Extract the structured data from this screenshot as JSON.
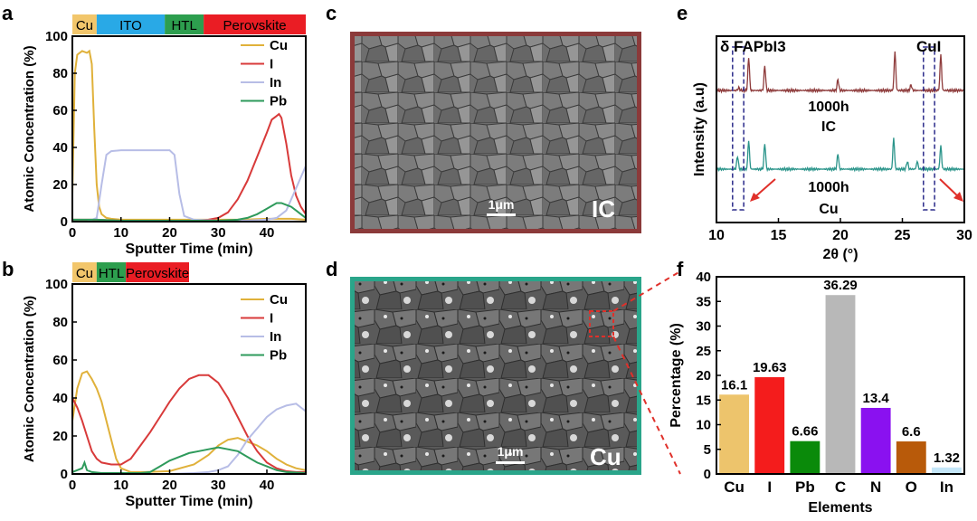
{
  "panel_labels": {
    "a": "a",
    "b": "b",
    "c": "c",
    "d": "d",
    "e": "e",
    "f": "f"
  },
  "colors": {
    "Cu": "#e0b13a",
    "I": "#d83a3a",
    "In": "#b7bde6",
    "Pb": "#2e9a5b",
    "bar_Cu": "#f2c66b",
    "ITO": "#29a9e6",
    "HTL": "#2d9e4e",
    "Perovskite": "#ea1d24",
    "ic_frame": "#8b3a3a",
    "cu_frame": "#2aa58a",
    "xrd_ic": "#8e3b3b",
    "xrd_cu": "#2a948a",
    "arrow": "#e0302a",
    "dash": "#2a2a8a"
  },
  "sem": {
    "c": {
      "scale_label": "1μm",
      "sample_label": "IC"
    },
    "d": {
      "scale_label": "1μm",
      "sample_label": "Cu"
    }
  },
  "chart_data": [
    {
      "id": "a",
      "type": "line",
      "xlabel": "Sputter Time (min)",
      "ylabel": "Atomic Concentration (%)",
      "xlim": [
        0,
        48
      ],
      "ylim": [
        0,
        100
      ],
      "xticks": [
        0,
        10,
        20,
        30,
        40
      ],
      "yticks": [
        0,
        20,
        40,
        60,
        80,
        100
      ],
      "layers": [
        {
          "label": "Cu",
          "x0": 0,
          "x1": 5,
          "color": "#f2c66b"
        },
        {
          "label": "ITO",
          "x0": 5,
          "x1": 19,
          "color": "#29a9e6"
        },
        {
          "label": "HTL",
          "x0": 19,
          "x1": 27,
          "color": "#2d9e4e"
        },
        {
          "label": "Perovskite",
          "x0": 27,
          "x1": 48,
          "color": "#ea1d24"
        }
      ],
      "series": [
        {
          "name": "Cu",
          "color": "#e0b13a",
          "x": [
            0,
            0.5,
            1,
            2,
            3,
            3.5,
            4,
            4.5,
            5,
            5.5,
            6,
            7,
            8,
            10,
            15,
            20,
            25,
            30,
            35,
            40,
            45,
            48
          ],
          "y": [
            15,
            80,
            90,
            92,
            91,
            92,
            85,
            50,
            20,
            8,
            4,
            2,
            1.5,
            1,
            1,
            1,
            1,
            1,
            1,
            1.5,
            1.5,
            1
          ]
        },
        {
          "name": "I",
          "color": "#d83a3a",
          "x": [
            0,
            5,
            10,
            20,
            25,
            28,
            30,
            32,
            34,
            36,
            38,
            40,
            41,
            42,
            42.5,
            43,
            44,
            45,
            46,
            47,
            48
          ],
          "y": [
            1,
            1,
            0.5,
            0.5,
            0.5,
            1,
            2,
            5,
            12,
            22,
            35,
            48,
            55,
            57,
            58,
            56,
            42,
            25,
            14,
            8,
            4
          ]
        },
        {
          "name": "In",
          "color": "#b7bde6",
          "x": [
            0,
            3,
            5,
            6,
            7,
            8,
            10,
            15,
            20,
            21,
            22,
            23,
            25,
            30,
            35,
            40,
            42,
            44,
            46,
            48
          ],
          "y": [
            0,
            0,
            2,
            20,
            36,
            38,
            38.5,
            38.5,
            38.5,
            36,
            15,
            3,
            1,
            0.5,
            0.5,
            1,
            2,
            6,
            18,
            30
          ]
        },
        {
          "name": "Pb",
          "color": "#2e9a5b",
          "x": [
            0,
            5,
            10,
            20,
            25,
            30,
            34,
            36,
            38,
            40,
            42,
            43,
            44,
            45,
            46,
            47,
            48
          ],
          "y": [
            1,
            1,
            0.5,
            0.5,
            0.5,
            0.5,
            1,
            2,
            4,
            7,
            10,
            10,
            9,
            8,
            6,
            4,
            2
          ]
        }
      ]
    },
    {
      "id": "b",
      "type": "line",
      "xlabel": "Sputter Time (min)",
      "ylabel": "Atomic Concentration (%)",
      "xlim": [
        0,
        48
      ],
      "ylim": [
        0,
        100
      ],
      "xticks": [
        0,
        10,
        20,
        30,
        40
      ],
      "yticks": [
        0,
        20,
        40,
        60,
        80,
        100
      ],
      "layers": [
        {
          "label": "Cu",
          "x0": 0,
          "x1": 5,
          "color": "#f2c66b"
        },
        {
          "label": "HTL",
          "x0": 5,
          "x1": 11,
          "color": "#2d9e4e"
        },
        {
          "label": "Perovskite",
          "x0": 11,
          "x1": 24,
          "color": "#ea1d24"
        }
      ],
      "series": [
        {
          "name": "Cu",
          "color": "#e0b13a",
          "x": [
            0,
            1,
            2,
            3,
            4,
            5,
            6,
            7,
            8,
            9,
            10,
            12,
            15,
            20,
            25,
            28,
            30,
            32,
            34,
            36,
            38,
            40,
            42,
            44,
            46,
            48
          ],
          "y": [
            28,
            45,
            53,
            54,
            50,
            45,
            38,
            28,
            18,
            8,
            3,
            1,
            1,
            1.5,
            5,
            10,
            15,
            18,
            19,
            17,
            15,
            12,
            8,
            5,
            3,
            2
          ]
        },
        {
          "name": "I",
          "color": "#d83a3a",
          "x": [
            0,
            1,
            2,
            3,
            4,
            5,
            6,
            8,
            10,
            12,
            14,
            16,
            18,
            20,
            22,
            24,
            26,
            28,
            30,
            32,
            34,
            36,
            38,
            40,
            42,
            44,
            46,
            48
          ],
          "y": [
            40,
            35,
            28,
            20,
            12,
            8,
            6,
            5,
            5,
            8,
            15,
            22,
            30,
            38,
            45,
            50,
            52,
            52,
            48,
            40,
            30,
            20,
            12,
            6,
            3,
            1.5,
            1,
            1
          ]
        },
        {
          "name": "In",
          "color": "#b7bde6",
          "x": [
            0,
            10,
            20,
            25,
            28,
            30,
            32,
            34,
            36,
            38,
            40,
            42,
            44,
            46,
            47,
            48
          ],
          "y": [
            0,
            0,
            0,
            0.5,
            1,
            2,
            4,
            10,
            18,
            24,
            30,
            34,
            36,
            37,
            35,
            33
          ]
        },
        {
          "name": "Pb",
          "color": "#2e9a5b",
          "x": [
            0,
            1,
            2,
            2.5,
            3,
            4,
            6,
            10,
            14,
            16,
            18,
            20,
            22,
            24,
            26,
            28,
            30,
            32,
            34,
            36,
            38,
            40,
            42,
            44,
            48
          ],
          "y": [
            1,
            2,
            3,
            6,
            2,
            1,
            0.5,
            0.5,
            0.5,
            1,
            4,
            7,
            9,
            11,
            12,
            13,
            14,
            13,
            12,
            9,
            6,
            4,
            2,
            1,
            0.5
          ]
        }
      ]
    },
    {
      "id": "e",
      "type": "line",
      "xlabel": "2θ (°)",
      "ylabel": "Intensity (a.u)",
      "xlim": [
        10,
        30
      ],
      "xticks": [
        10,
        15,
        20,
        25,
        30
      ],
      "annotations": [
        {
          "text": "δ FAPbI3",
          "x": 10.1
        },
        {
          "text": "CuI",
          "x": 26.3
        },
        {
          "text": "1000h",
          "x": 17
        },
        {
          "text": "IC",
          "x": 17
        },
        {
          "text": "1000h",
          "x": 17
        },
        {
          "text": "Cu",
          "x": 17
        }
      ],
      "series": [
        {
          "name": "1000h IC",
          "color": "#8e3b3b",
          "baseline": 0,
          "peaks": [
            {
              "x": 11.8,
              "h": 0.05
            },
            {
              "x": 12.6,
              "h": 0.6
            },
            {
              "x": 13.9,
              "h": 0.45
            },
            {
              "x": 19.8,
              "h": 0.2
            },
            {
              "x": 24.4,
              "h": 0.7
            },
            {
              "x": 25.7,
              "h": 0.1
            },
            {
              "x": 28.1,
              "h": 0.65
            }
          ]
        },
        {
          "name": "1000h Cu",
          "color": "#2a948a",
          "baseline": 1,
          "peaks": [
            {
              "x": 11.7,
              "h": 0.25
            },
            {
              "x": 12.6,
              "h": 0.55
            },
            {
              "x": 13.9,
              "h": 0.5
            },
            {
              "x": 19.8,
              "h": 0.3
            },
            {
              "x": 24.3,
              "h": 0.6
            },
            {
              "x": 25.4,
              "h": 0.15
            },
            {
              "x": 26.2,
              "h": 0.15
            },
            {
              "x": 28.1,
              "h": 0.45
            }
          ]
        }
      ],
      "boxes": [
        {
          "x0": 11.3,
          "x1": 12.2
        },
        {
          "x0": 26.7,
          "x1": 27.6
        }
      ]
    },
    {
      "id": "f",
      "type": "bar",
      "xlabel": "Elements",
      "ylabel": "Percentage (%)",
      "ylim": [
        0,
        40
      ],
      "yticks": [
        0,
        5,
        10,
        15,
        20,
        25,
        30,
        35,
        40
      ],
      "categories": [
        "Cu",
        "I",
        "Pb",
        "C",
        "N",
        "O",
        "In"
      ],
      "values": [
        16.1,
        19.63,
        6.66,
        36.29,
        13.4,
        6.6,
        1.32
      ],
      "labels": [
        "16.1",
        "19.63",
        "6.66",
        "36.29",
        "13.4",
        "6.6",
        "1.32"
      ],
      "colors": [
        "#edc46c",
        "#f41c1c",
        "#0a8a0a",
        "#b8b8b8",
        "#8a11f0",
        "#b85a0a",
        "#c4e6f8"
      ]
    }
  ]
}
